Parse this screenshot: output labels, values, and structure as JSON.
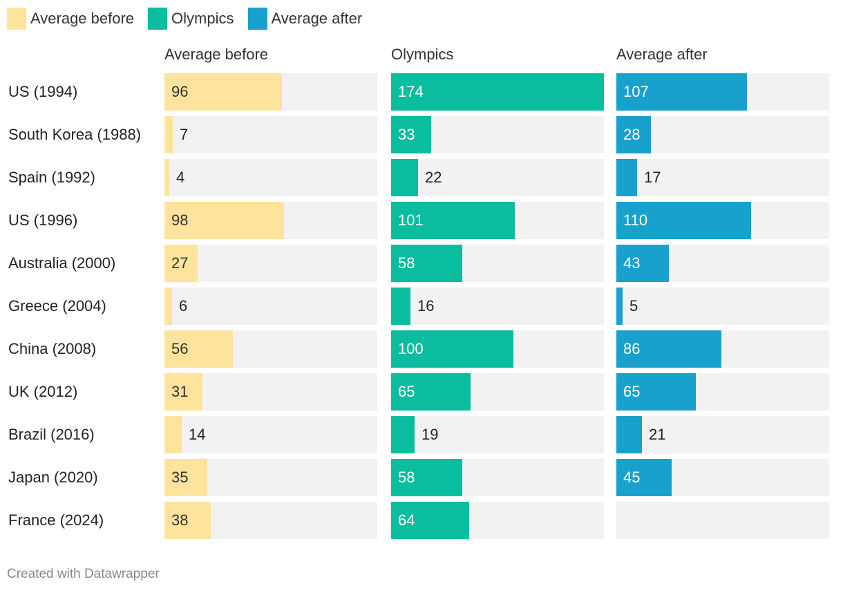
{
  "chart_data": {
    "type": "bar",
    "orientation": "horizontal",
    "layout": "small-multiples",
    "categories": [
      "US (1994)",
      "South Korea (1988)",
      "Spain (1992)",
      "US (1996)",
      "Australia (2000)",
      "Greece (2004)",
      "China (2008)",
      "UK (2012)",
      "Brazil (2016)",
      "Japan (2020)",
      "France (2024)"
    ],
    "xlim": [
      0,
      174
    ],
    "series": [
      {
        "name": "Average before",
        "color": "#fee39d",
        "text_color": "#333333",
        "values": [
          96,
          7,
          4,
          98,
          27,
          6,
          56,
          31,
          14,
          35,
          38
        ]
      },
      {
        "name": "Olympics",
        "color": "#0abd9f",
        "text_color": "#ffffff",
        "values": [
          174,
          33,
          22,
          101,
          58,
          16,
          100,
          65,
          19,
          58,
          64
        ]
      },
      {
        "name": "Average after",
        "color": "#18a1cd",
        "text_color": "#ffffff",
        "values": [
          107,
          28,
          17,
          110,
          43,
          5,
          86,
          65,
          21,
          45,
          null
        ]
      }
    ],
    "legend": "top-left"
  },
  "footer": {
    "credit": "Created with Datawrapper"
  }
}
